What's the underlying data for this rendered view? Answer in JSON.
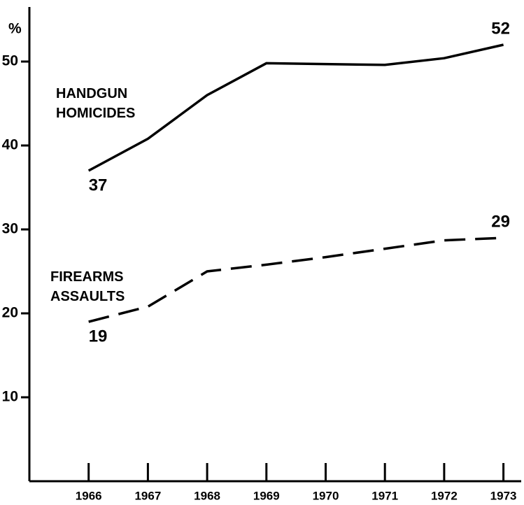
{
  "chart_data": {
    "type": "line",
    "y_label": "%",
    "x": [
      1966,
      1967,
      1968,
      1969,
      1970,
      1971,
      1972,
      1973
    ],
    "xlim": [
      1965,
      1973.3
    ],
    "xticks": [
      1966,
      1967,
      1968,
      1969,
      1970,
      1971,
      1972,
      1973
    ],
    "ylim": [
      0,
      56.5
    ],
    "yticks": [
      10,
      20,
      30,
      40,
      50
    ],
    "series": [
      {
        "name": "HANDGUN HOMICIDES",
        "color": "#000000",
        "dash": "solid",
        "values": [
          37,
          40.8,
          46,
          49.8,
          49.7,
          49.6,
          50.4,
          52
        ],
        "value_labels": [
          "37",
          null,
          null,
          null,
          null,
          null,
          null,
          "52"
        ]
      },
      {
        "name": "FIREARMS ASSAULTS",
        "color": "#000000",
        "dash": "dashed",
        "values": [
          19,
          20.8,
          25,
          25.8,
          26.7,
          27.7,
          28.7,
          29
        ],
        "value_labels": [
          "19",
          null,
          null,
          null,
          null,
          null,
          null,
          "29"
        ]
      }
    ]
  }
}
